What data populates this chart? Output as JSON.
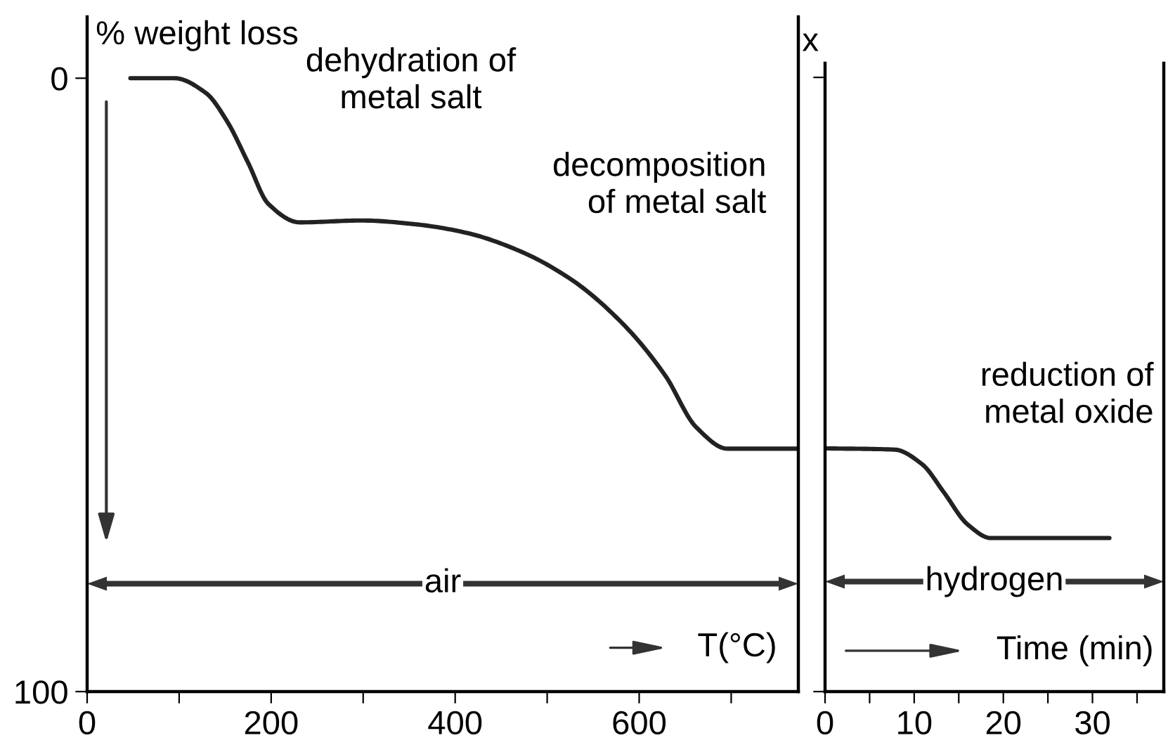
{
  "chart_data": [
    {
      "type": "line",
      "ylabel": "% weight loss",
      "xlabel": "T(°C)",
      "color": "#222222",
      "x": [
        47,
        95,
        129,
        152,
        175,
        197,
        231,
        299,
        356,
        412,
        469,
        526,
        582,
        628,
        662,
        696,
        773
      ],
      "values": [
        0,
        0,
        2.4,
        7.0,
        13.8,
        20.5,
        23.5,
        23.2,
        23.8,
        25.2,
        28.1,
        32.8,
        40.0,
        48.4,
        56.9,
        60.4,
        60.4
      ],
      "xlim": [
        0,
        773
      ],
      "xticks": [
        0,
        {
          "value": 100,
          "label": null
        },
        200,
        {
          "value": 300,
          "label": null
        },
        400,
        {
          "value": 500,
          "label": null
        },
        600,
        {
          "value": 700,
          "label": null
        }
      ],
      "ylim": [
        100,
        -10
      ],
      "yticks": [
        0,
        100
      ],
      "annotations": [
        "dehydration of\nmetal salt",
        "decomposition\nof metal salt",
        "air",
        "x"
      ]
    },
    {
      "type": "line",
      "xlabel": "Time (min)",
      "color": "#222222",
      "tick_labels": "x",
      "x": [
        0,
        7.8,
        10.9,
        13.3,
        16,
        18.6,
        31.9
      ],
      "values": [
        60.4,
        60.6,
        63,
        67.5,
        72.8,
        75,
        75
      ],
      "xlim": [
        0,
        38
      ],
      "xticks": [
        0,
        {
          "value": 5,
          "label": null
        },
        10,
        {
          "value": 15,
          "label": null
        },
        20,
        {
          "value": 25,
          "label": null
        },
        30,
        {
          "value": 35,
          "label": null
        }
      ],
      "ylim": [
        100,
        -2.3
      ],
      "yticks": [
        0,
        100
      ],
      "annotations": [
        "reduction of\nmetal oxide",
        "hydrogen"
      ]
    }
  ]
}
